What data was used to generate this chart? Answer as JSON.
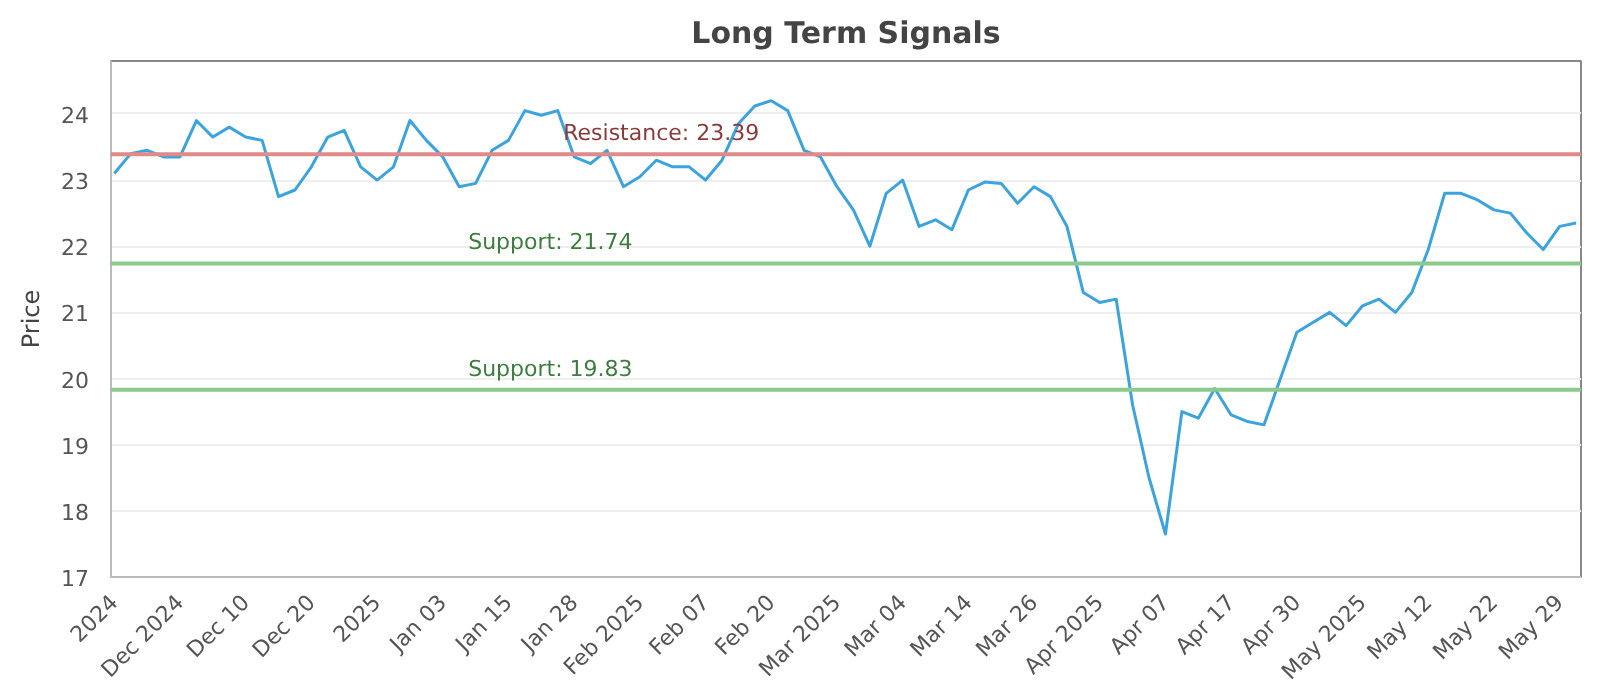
{
  "chart_data": {
    "type": "line",
    "title": "Long Term Signals",
    "ylabel": "Price",
    "categories": [
      "2024",
      null,
      null,
      null,
      "Dec 2024",
      null,
      null,
      null,
      "Dec 10",
      null,
      null,
      null,
      "Dec 20",
      null,
      null,
      null,
      "2025",
      null,
      null,
      null,
      "Jan 03",
      null,
      null,
      null,
      "Jan 15",
      null,
      null,
      null,
      "Jan 28",
      null,
      null,
      null,
      "Feb 2025",
      null,
      null,
      null,
      "Feb 07",
      null,
      null,
      null,
      "Feb 20",
      null,
      null,
      null,
      "Mar 2025",
      null,
      null,
      null,
      "Mar 04",
      null,
      null,
      null,
      "Mar 14",
      null,
      null,
      null,
      "Mar 26",
      null,
      null,
      null,
      "Apr 2025",
      null,
      null,
      null,
      "Apr 07",
      null,
      null,
      null,
      "Apr 17",
      null,
      null,
      null,
      "Apr 30",
      null,
      null,
      null,
      "May 2025",
      null,
      null,
      null,
      "May 12",
      null,
      null,
      null,
      "May 22",
      null,
      null,
      null,
      "May 29",
      null
    ],
    "series": [
      {
        "color": "#3ba3dd",
        "values": [
          23.1,
          23.4,
          23.45,
          23.35,
          23.35,
          23.9,
          23.65,
          23.8,
          23.65,
          23.6,
          22.75,
          22.85,
          23.2,
          23.65,
          23.75,
          23.2,
          23.0,
          23.2,
          23.9,
          23.6,
          23.35,
          22.9,
          22.95,
          23.45,
          23.6,
          24.05,
          23.98,
          24.05,
          23.35,
          23.25,
          23.45,
          22.9,
          23.05,
          23.3,
          23.2,
          23.2,
          23.0,
          23.3,
          23.85,
          24.12,
          24.2,
          24.05,
          23.45,
          23.35,
          22.9,
          22.55,
          22.0,
          22.8,
          23.0,
          22.3,
          22.4,
          22.25,
          22.85,
          22.97,
          22.95,
          22.65,
          22.9,
          22.75,
          22.3,
          21.3,
          21.15,
          21.2,
          19.6,
          18.5,
          17.65,
          19.5,
          19.4,
          19.85,
          19.45,
          19.35,
          19.3,
          20.0,
          20.7,
          20.85,
          21.0,
          20.8,
          21.1,
          21.2,
          21.0,
          21.3,
          21.95,
          22.8,
          22.8,
          22.7,
          22.55,
          22.5,
          22.2,
          21.95,
          22.3,
          22.35
        ]
      }
    ],
    "ylim": [
      17,
      24.8
    ],
    "yticks": [
      17,
      18,
      19,
      20,
      21,
      22,
      23,
      24
    ],
    "grid": "y",
    "marker": "none",
    "line_style": "solid",
    "ref_lines": [
      {
        "axis": "y",
        "value": 23.39,
        "label": "Resistance: 23.39",
        "color": "#e08a8a"
      },
      {
        "axis": "y",
        "value": 21.74,
        "label": "Support: 21.74",
        "color": "#8cc98c"
      },
      {
        "axis": "y",
        "value": 19.83,
        "label": "Support: 19.83",
        "color": "#8cc98c"
      }
    ]
  }
}
